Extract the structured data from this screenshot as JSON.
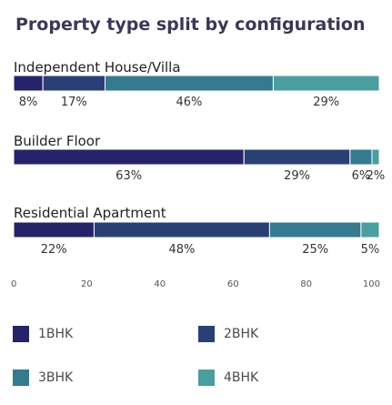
{
  "chart_data": {
    "type": "bar",
    "orientation": "horizontal",
    "stacked": true,
    "title": "Property type split by configuration",
    "categories": [
      "Independent House/Villa",
      "Builder Floor",
      "Residential Apartment"
    ],
    "series": [
      {
        "name": "1BHK",
        "color": "#262469",
        "values": [
          8,
          63,
          22
        ]
      },
      {
        "name": "2BHK",
        "color": "#2a3f74",
        "values": [
          17,
          29,
          48
        ]
      },
      {
        "name": "3BHK",
        "color": "#357a8f",
        "values": [
          46,
          6,
          25
        ]
      },
      {
        "name": "4BHK",
        "color": "#4a9ea0",
        "values": [
          29,
          2,
          5
        ]
      }
    ],
    "data_labels": [
      [
        "8%",
        "17%",
        "46%",
        "29%"
      ],
      [
        "63%",
        "29%",
        "6%",
        "2%"
      ],
      [
        "22%",
        "48%",
        "25%",
        "5%"
      ]
    ],
    "xlim": [
      0,
      100
    ],
    "xticks": [
      "0",
      "20",
      "40",
      "60",
      "80",
      "100"
    ],
    "grid": false,
    "legend_position": "bottom"
  }
}
